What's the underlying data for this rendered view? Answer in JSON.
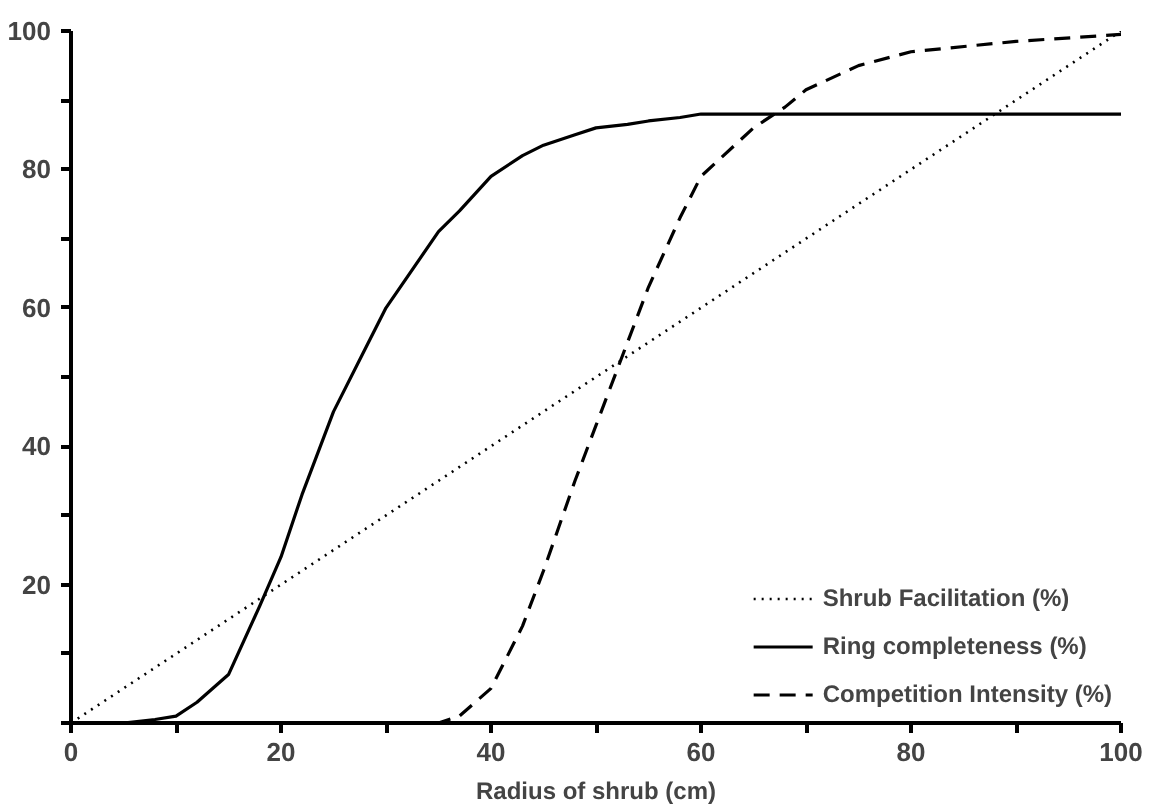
{
  "chart_data": {
    "type": "line",
    "xlabel": "Radius of shrub (cm)",
    "x": [
      0,
      5,
      8,
      10,
      12,
      15,
      18,
      20,
      22,
      25,
      28,
      30,
      35,
      37,
      40,
      43,
      45,
      48,
      50,
      53,
      55,
      58,
      60,
      65,
      68,
      70,
      75,
      80,
      90,
      100
    ],
    "series": [
      {
        "name": "Shrub Facilitation (%)",
        "color": "#000000",
        "line_style": "dotted",
        "values": [
          0,
          5,
          8,
          10,
          12,
          15,
          18,
          20,
          22,
          25,
          28,
          30,
          35,
          37,
          40,
          43,
          45,
          48,
          50,
          53,
          55,
          58,
          60,
          65,
          68,
          70,
          75,
          80,
          90,
          100
        ]
      },
      {
        "name": "Ring completeness (%)",
        "color": "#000000",
        "line_style": "solid",
        "values": [
          0,
          0,
          0.5,
          1,
          3,
          7,
          17,
          24,
          33,
          45,
          54,
          60,
          71,
          74,
          79,
          82,
          83.5,
          85,
          86,
          86.5,
          87,
          87.5,
          88,
          88,
          88,
          88,
          88,
          88,
          88,
          88
        ]
      },
      {
        "name": "Competition Intensity (%)",
        "color": "#000000",
        "line_style": "dashed",
        "values": [
          0,
          0,
          0,
          0,
          0,
          0,
          0,
          0,
          0,
          0,
          0,
          0,
          0,
          1,
          5,
          14,
          22,
          35,
          43,
          55,
          63,
          73,
          79,
          86,
          89,
          91.5,
          95,
          97,
          98.5,
          99.5
        ]
      }
    ],
    "xlim": [
      0,
      100
    ],
    "ylim": [
      0,
      100
    ],
    "xticks": [
      0,
      {
        "value": 10,
        "label": null
      },
      20,
      {
        "value": 30,
        "label": null
      },
      40,
      {
        "value": 50,
        "label": null
      },
      60,
      {
        "value": 70,
        "label": null
      },
      80,
      {
        "value": 90,
        "label": null
      },
      100
    ],
    "yticks": [
      {
        "value": 0,
        "label": null
      },
      {
        "value": 10,
        "label": null
      },
      20,
      {
        "value": 30,
        "label": null
      },
      40,
      {
        "value": 50,
        "label": null
      },
      60,
      {
        "value": 70,
        "label": null
      },
      80,
      {
        "value": 90,
        "label": null
      },
      100
    ],
    "grid": false,
    "legend": "bottom right",
    "marker": "none"
  }
}
